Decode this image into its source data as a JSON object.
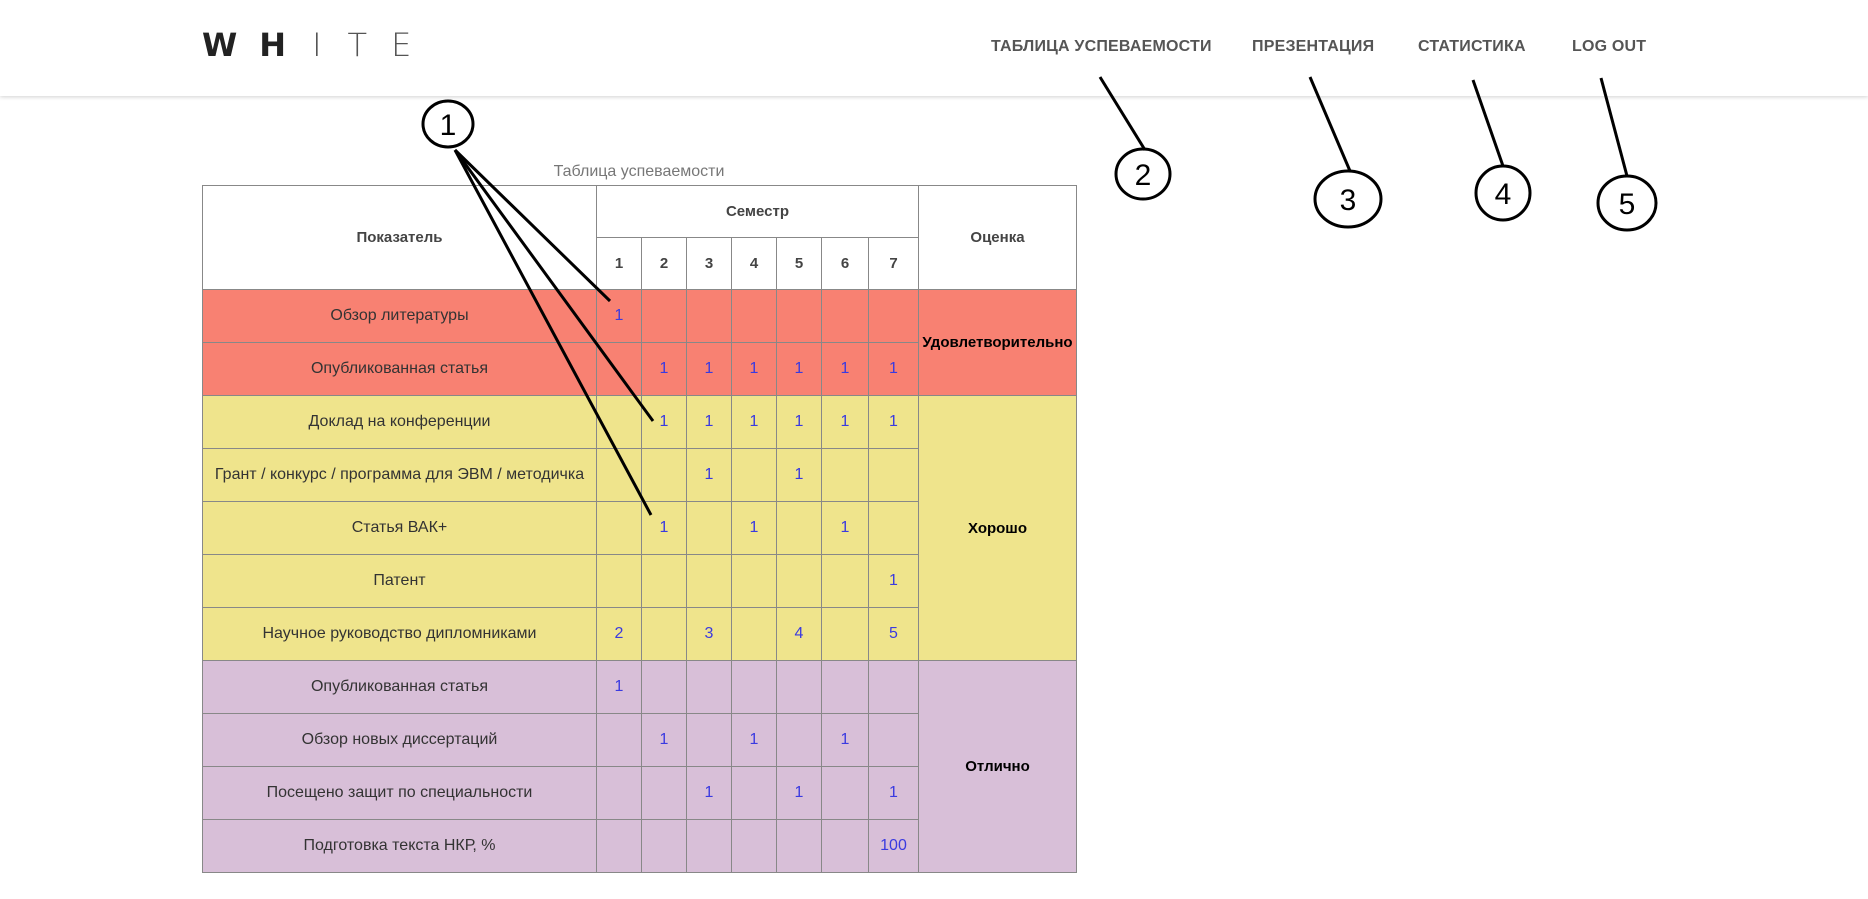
{
  "header": {
    "logo_letters": [
      "W",
      "H",
      "I",
      "T",
      "E"
    ],
    "nav": [
      {
        "label": "ТАБЛИЦА УСПЕВАЕМОСТИ"
      },
      {
        "label": "ПРЕЗЕНТАЦИЯ"
      },
      {
        "label": "СТАТИСТИКА"
      },
      {
        "label": "LOG OUT"
      }
    ]
  },
  "table": {
    "caption": "Таблица успеваемости",
    "col_indicator": "Показатель",
    "col_semester": "Семестр",
    "col_grade": "Оценка",
    "semesters": [
      "1",
      "2",
      "3",
      "4",
      "5",
      "6",
      "7"
    ],
    "groups": [
      {
        "grade": "Удовлетворительно",
        "color": "#f88172",
        "rows": [
          {
            "name": "Обзор литературы",
            "values": [
              "1",
              "",
              "",
              "",
              "",
              "",
              ""
            ]
          },
          {
            "name": "Опубликованная статья",
            "values": [
              "",
              "1",
              "1",
              "1",
              "1",
              "1",
              "1"
            ]
          }
        ]
      },
      {
        "grade": "Хорошо",
        "color": "#efe48c",
        "rows": [
          {
            "name": "Доклад на конференции",
            "values": [
              "",
              "1",
              "1",
              "1",
              "1",
              "1",
              "1"
            ]
          },
          {
            "name": "Грант / конкурс / программа для ЭВМ / методичка",
            "values": [
              "",
              "",
              "1",
              "",
              "1",
              "",
              ""
            ]
          },
          {
            "name": "Статья ВАК+",
            "values": [
              "",
              "1",
              "",
              "1",
              "",
              "1",
              ""
            ]
          },
          {
            "name": "Патент",
            "values": [
              "",
              "",
              "",
              "",
              "",
              "",
              "1"
            ]
          },
          {
            "name": "Научное руководство дипломниками",
            "values": [
              "2",
              "",
              "3",
              "",
              "4",
              "",
              "5"
            ]
          }
        ]
      },
      {
        "grade": "Отлично",
        "color": "#d8bfd8",
        "rows": [
          {
            "name": "Опубликованная статья",
            "values": [
              "1",
              "",
              "",
              "",
              "",
              "",
              ""
            ]
          },
          {
            "name": "Обзор новых диссертаций",
            "values": [
              "",
              "1",
              "",
              "1",
              "",
              "1",
              ""
            ]
          },
          {
            "name": "Посещено защит по специальности",
            "values": [
              "",
              "",
              "1",
              "",
              "1",
              "",
              "1"
            ]
          },
          {
            "name": "Подготовка текста НКР, %",
            "values": [
              "",
              "",
              "",
              "",
              "",
              "",
              "100"
            ]
          }
        ]
      }
    ]
  },
  "annotations": [
    "1",
    "2",
    "3",
    "4",
    "5"
  ]
}
